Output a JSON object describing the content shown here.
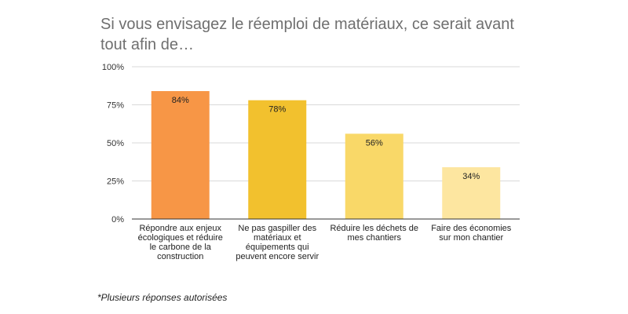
{
  "title": "Si vous envisagez le réemploi de matériaux, ce serait avant tout afin de…",
  "footnote": "*Plusieurs réponses autorisées",
  "chart_data": {
    "type": "bar",
    "title": "Si vous envisagez le réemploi de matériaux, ce serait avant tout afin de…",
    "categories": [
      "Répondre aux enjeux écologiques et réduire le carbone de la construction",
      "Ne pas gaspiller des matériaux et équipements qui peuvent encore servir",
      "Réduire les déchets de mes chantiers",
      "Faire des économies sur mon chantier"
    ],
    "values": [
      84,
      78,
      56,
      34
    ],
    "data_labels": [
      "84%",
      "78%",
      "56%",
      "34%"
    ],
    "colors": [
      "#f79646",
      "#f2c12e",
      "#f9d868",
      "#fde6a0"
    ],
    "ylim": [
      0,
      100
    ],
    "yticks": [
      0,
      25,
      50,
      75,
      100
    ],
    "ytick_labels": [
      "0%",
      "25%",
      "50%",
      "75%",
      "100%"
    ],
    "grid": true,
    "legend": "none"
  }
}
